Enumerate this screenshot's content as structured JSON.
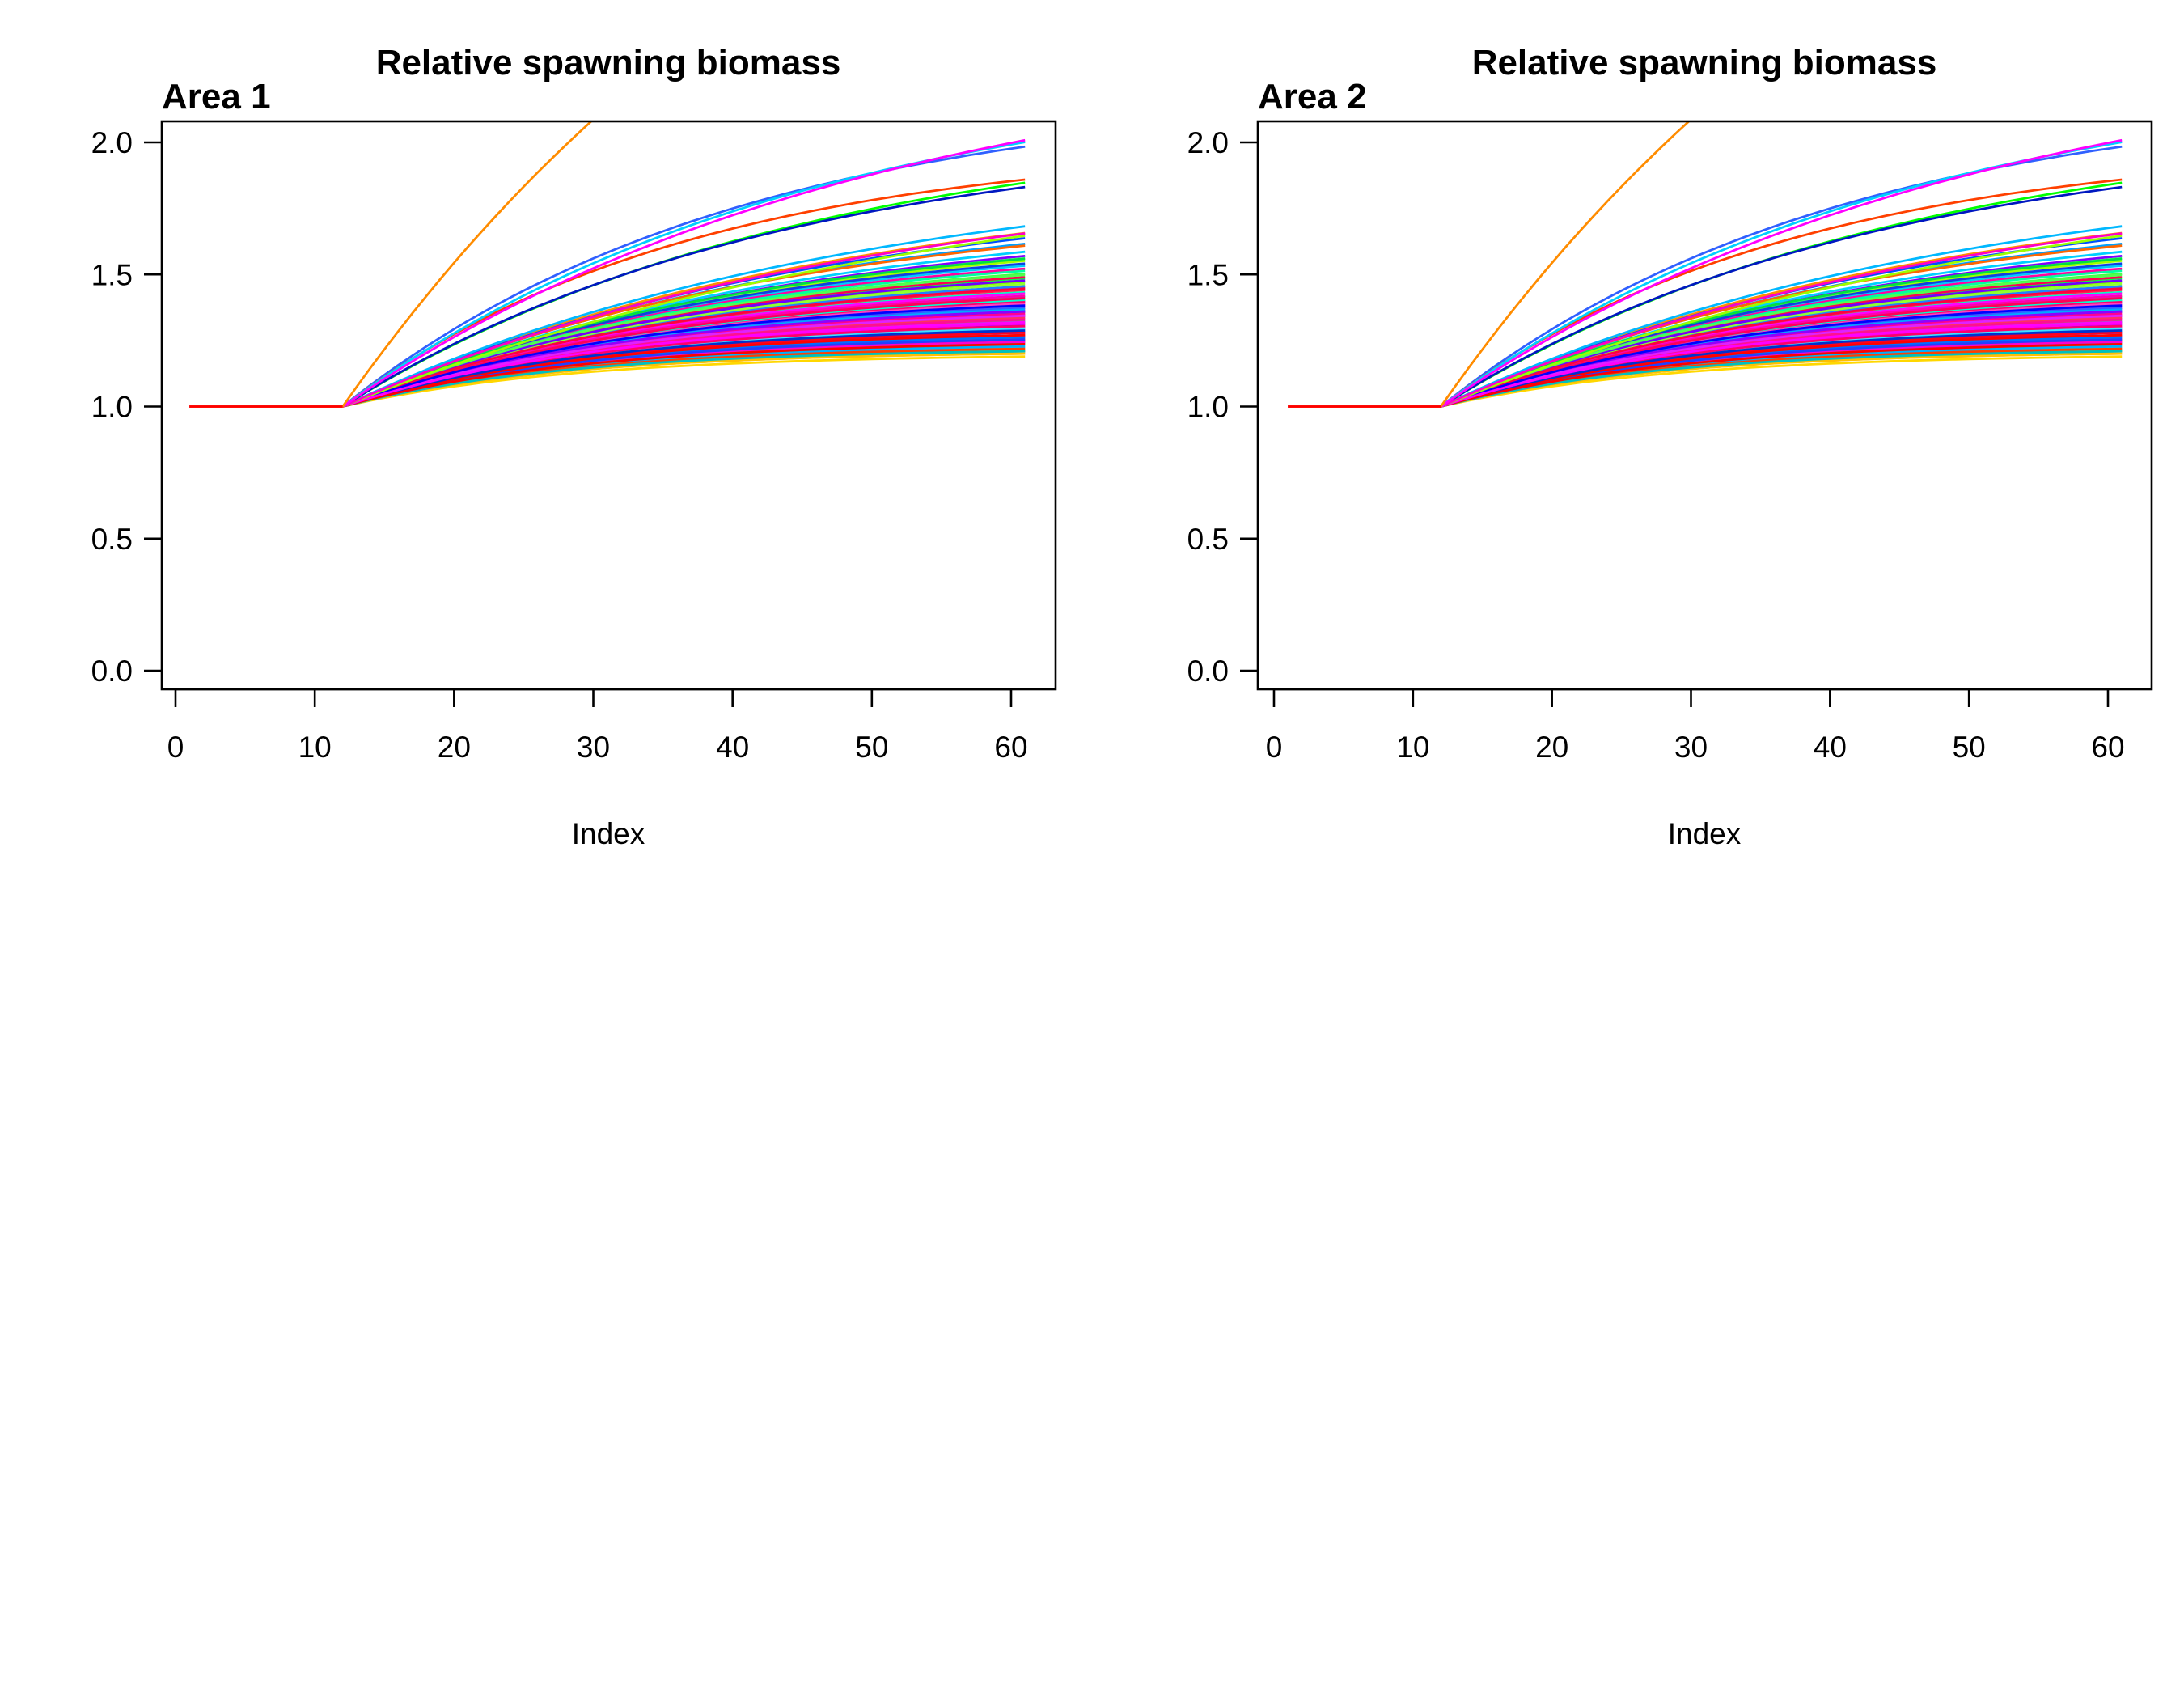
{
  "chart_data": [
    {
      "type": "line",
      "title": "Relative spawning biomass",
      "panel_label": "Area 1",
      "xlabel": "Index",
      "ylabel": "",
      "xlim": [
        0,
        61
      ],
      "ylim": [
        0,
        2.0
      ],
      "x_ticks": [
        "0",
        "10",
        "20",
        "30",
        "40",
        "50",
        "60"
      ],
      "y_ticks": [
        "0.0",
        "0.5",
        "1.0",
        "1.5",
        "2.0"
      ],
      "grid": false,
      "legend": "none",
      "series_description": "about 100 simulated trajectories; each stays at 1.0 for index 1 to 12, then rises and levels off between about 1.18 and above 2.0 by index 61",
      "baseline": {
        "x_start": 1,
        "x_end": 12,
        "value": 1.0
      },
      "series": [
        {
          "asymptote": 1.2,
          "rate": 0.06,
          "color": "#ffd700"
        },
        {
          "asymptote": 1.26,
          "rate": 0.058,
          "color": "#ff0000"
        },
        {
          "asymptote": 1.42,
          "rate": 0.045,
          "color": "#ff00aa"
        },
        {
          "asymptote": 1.65,
          "rate": 0.035,
          "color": "#00c8ff"
        },
        {
          "asymptote": 1.3,
          "rate": 0.055,
          "color": "#0040ff"
        },
        {
          "asymptote": 1.55,
          "rate": 0.04,
          "color": "#80ff00"
        },
        {
          "asymptote": 1.22,
          "rate": 0.062,
          "color": "#ff8000"
        },
        {
          "asymptote": 1.36,
          "rate": 0.05,
          "color": "#ff0060"
        },
        {
          "asymptote": 1.48,
          "rate": 0.042,
          "color": "#00ff80"
        },
        {
          "asymptote": 1.72,
          "rate": 0.032,
          "color": "#8000ff"
        },
        {
          "asymptote": 1.28,
          "rate": 0.057,
          "color": "#ff00ff"
        },
        {
          "asymptote": 1.4,
          "rate": 0.046,
          "color": "#0080ff"
        },
        {
          "asymptote": 1.52,
          "rate": 0.041,
          "color": "#ff2020"
        },
        {
          "asymptote": 1.24,
          "rate": 0.06,
          "color": "#00e0e0"
        },
        {
          "asymptote": 1.33,
          "rate": 0.052,
          "color": "#ff00c0"
        },
        {
          "asymptote": 1.6,
          "rate": 0.037,
          "color": "#40ff40"
        },
        {
          "asymptote": 1.45,
          "rate": 0.044,
          "color": "#2000c0"
        },
        {
          "asymptote": 1.21,
          "rate": 0.063,
          "color": "#ffa000"
        },
        {
          "asymptote": 1.38,
          "rate": 0.048,
          "color": "#e000ff"
        },
        {
          "asymptote": 1.8,
          "rate": 0.03,
          "color": "#00a0ff"
        },
        {
          "asymptote": 1.27,
          "rate": 0.056,
          "color": "#ff0040"
        },
        {
          "asymptote": 1.5,
          "rate": 0.041,
          "color": "#00ffc0"
        },
        {
          "asymptote": 1.34,
          "rate": 0.051,
          "color": "#4000ff"
        },
        {
          "asymptote": 1.68,
          "rate": 0.034,
          "color": "#a0ff00"
        },
        {
          "asymptote": 1.23,
          "rate": 0.061,
          "color": "#ff6000"
        },
        {
          "asymptote": 1.43,
          "rate": 0.045,
          "color": "#ff00e0"
        },
        {
          "asymptote": 1.31,
          "rate": 0.054,
          "color": "#0060ff"
        },
        {
          "asymptote": 1.57,
          "rate": 0.039,
          "color": "#00ff40"
        },
        {
          "asymptote": 1.26,
          "rate": 0.057,
          "color": "#c000ff"
        },
        {
          "asymptote": 1.39,
          "rate": 0.047,
          "color": "#ff0080"
        },
        {
          "asymptote": 1.75,
          "rate": 0.031,
          "color": "#00d0ff"
        },
        {
          "asymptote": 1.29,
          "rate": 0.055,
          "color": "#ff3030"
        },
        {
          "asymptote": 1.46,
          "rate": 0.043,
          "color": "#60ff00"
        },
        {
          "asymptote": 1.35,
          "rate": 0.05,
          "color": "#0000c0"
        },
        {
          "asymptote": 1.63,
          "rate": 0.036,
          "color": "#ff00a0"
        },
        {
          "asymptote": 1.25,
          "rate": 0.059,
          "color": "#00ffe0"
        },
        {
          "asymptote": 1.41,
          "rate": 0.046,
          "color": "#ff1060"
        },
        {
          "asymptote": 1.53,
          "rate": 0.04,
          "color": "#2080ff"
        },
        {
          "asymptote": 1.32,
          "rate": 0.053,
          "color": "#ff0030"
        },
        {
          "asymptote": 1.88,
          "rate": 0.028,
          "color": "#ff8c00"
        },
        {
          "asymptote": 1.37,
          "rate": 0.049,
          "color": "#a000ff"
        },
        {
          "asymptote": 1.22,
          "rate": 0.062,
          "color": "#00c040"
        },
        {
          "asymptote": 1.49,
          "rate": 0.042,
          "color": "#ff00ff"
        },
        {
          "asymptote": 1.28,
          "rate": 0.056,
          "color": "#0090ff"
        },
        {
          "asymptote": 1.7,
          "rate": 0.033,
          "color": "#40ff80"
        },
        {
          "asymptote": 1.44,
          "rate": 0.044,
          "color": "#ff2080"
        },
        {
          "asymptote": 1.3,
          "rate": 0.055,
          "color": "#6000ff"
        },
        {
          "asymptote": 1.58,
          "rate": 0.038,
          "color": "#ff0050"
        },
        {
          "asymptote": 1.24,
          "rate": 0.06,
          "color": "#00b0ff"
        },
        {
          "asymptote": 1.36,
          "rate": 0.05,
          "color": "#ff40ff"
        },
        {
          "asymptote": 1.47,
          "rate": 0.043,
          "color": "#20ff20"
        },
        {
          "asymptote": 1.27,
          "rate": 0.057,
          "color": "#ff1010"
        },
        {
          "asymptote": 1.4,
          "rate": 0.047,
          "color": "#0020ff"
        },
        {
          "asymptote": 1.62,
          "rate": 0.036,
          "color": "#00ffa0"
        },
        {
          "asymptote": 1.33,
          "rate": 0.052,
          "color": "#ff00c8"
        },
        {
          "asymptote": 1.42,
          "rate": 0.045,
          "color": "#3060ff"
        },
        {
          "asymptote": 1.29,
          "rate": 0.055,
          "color": "#e00060"
        },
        {
          "asymptote": 1.54,
          "rate": 0.04,
          "color": "#90ff30"
        },
        {
          "asymptote": 1.23,
          "rate": 0.061,
          "color": "#ff4000"
        },
        {
          "asymptote": 1.38,
          "rate": 0.048,
          "color": "#d000ff"
        },
        {
          "asymptote": 1.31,
          "rate": 0.054,
          "color": "#00e8ff"
        },
        {
          "asymptote": 1.45,
          "rate": 0.044,
          "color": "#ff0070"
        },
        {
          "asymptote": 1.66,
          "rate": 0.035,
          "color": "#1040e0"
        },
        {
          "asymptote": 1.26,
          "rate": 0.058,
          "color": "#ff00d0"
        },
        {
          "asymptote": 1.35,
          "rate": 0.051,
          "color": "#00ff60"
        },
        {
          "asymptote": 1.51,
          "rate": 0.041,
          "color": "#ff2050"
        },
        {
          "asymptote": 1.28,
          "rate": 0.056,
          "color": "#0070ff"
        },
        {
          "asymptote": 1.43,
          "rate": 0.045,
          "color": "#b000ff"
        },
        {
          "asymptote": 1.21,
          "rate": 0.063,
          "color": "#ffc000"
        },
        {
          "asymptote": 1.39,
          "rate": 0.047,
          "color": "#ff0090"
        },
        {
          "asymptote": 1.84,
          "rate": 0.029,
          "color": "#0050ff"
        },
        {
          "asymptote": 1.32,
          "rate": 0.053,
          "color": "#40e0ff"
        },
        {
          "asymptote": 1.48,
          "rate": 0.042,
          "color": "#ff00b0"
        },
        {
          "asymptote": 1.25,
          "rate": 0.059,
          "color": "#00d060"
        },
        {
          "asymptote": 1.37,
          "rate": 0.049,
          "color": "#ff3060"
        },
        {
          "asymptote": 1.56,
          "rate": 0.039,
          "color": "#7000ff"
        },
        {
          "asymptote": 1.3,
          "rate": 0.055,
          "color": "#ff0020"
        },
        {
          "asymptote": 1.41,
          "rate": 0.046,
          "color": "#00a8ff"
        },
        {
          "asymptote": 1.78,
          "rate": 0.031,
          "color": "#ff6600"
        },
        {
          "asymptote": 1.34,
          "rate": 0.052,
          "color": "#ff00f0"
        },
        {
          "asymptote": 1.27,
          "rate": 0.057,
          "color": "#2040ff"
        },
        {
          "asymptote": 1.46,
          "rate": 0.043,
          "color": "#00ffd0"
        },
        {
          "asymptote": 1.36,
          "rate": 0.05,
          "color": "#ff1090"
        },
        {
          "asymptote": 1.59,
          "rate": 0.038,
          "color": "#50ff50"
        },
        {
          "asymptote": 1.29,
          "rate": 0.055,
          "color": "#ff0000"
        },
        {
          "asymptote": 1.4,
          "rate": 0.047,
          "color": "#9000ff"
        },
        {
          "asymptote": 1.22,
          "rate": 0.062,
          "color": "#00c0c0"
        },
        {
          "asymptote": 1.33,
          "rate": 0.052,
          "color": "#ff0068"
        },
        {
          "asymptote": 1.69,
          "rate": 0.034,
          "color": "#00e040"
        },
        {
          "asymptote": 1.44,
          "rate": 0.044,
          "color": "#ff40c0"
        },
        {
          "asymptote": 1.31,
          "rate": 0.054,
          "color": "#0030d0"
        },
        {
          "asymptote": 1.52,
          "rate": 0.04,
          "color": "#ff0040"
        },
        {
          "asymptote": 1.93,
          "rate": 0.027,
          "color": "#00b8ff"
        },
        {
          "asymptote": 1.38,
          "rate": 0.048,
          "color": "#e020ff"
        },
        {
          "asymptote": 1.47,
          "rate": 0.042,
          "color": "#ff0058"
        },
        {
          "asymptote": 1.25,
          "rate": 0.059,
          "color": "#ff0000"
        },
        {
          "asymptote": 1.43,
          "rate": 0.045,
          "color": "#0000ff"
        },
        {
          "asymptote": 1.35,
          "rate": 0.05,
          "color": "#ff00ff"
        },
        {
          "asymptote": 2.2,
          "rate": 0.035,
          "color": "#3060ff"
        },
        {
          "asymptote": 2.1,
          "rate": 0.03,
          "color": "#00ff00"
        },
        {
          "asymptote": 2.0,
          "rate": 0.04,
          "color": "#ff4000"
        },
        {
          "asymptote": 1.98,
          "rate": 0.022,
          "color": "#9aff00"
        },
        {
          "asymptote": 2.05,
          "rate": 0.032,
          "color": "#0018c0"
        },
        {
          "asymptote": 2.3,
          "rate": 0.03,
          "color": "#00d0ff"
        },
        {
          "asymptote": 1.91,
          "rate": 0.026,
          "color": "#ff00c8"
        },
        {
          "asymptote": 2.4,
          "rate": 0.026,
          "color": "#ff00ff"
        },
        {
          "asymptote": 4.0,
          "rate": 0.025,
          "color": "#ff8c00"
        }
      ]
    },
    {
      "type": "line",
      "title": "Relative spawning biomass",
      "panel_label": "Area 2",
      "xlabel": "Index",
      "ylabel": "",
      "xlim": [
        0,
        61
      ],
      "ylim": [
        0,
        2.0
      ],
      "x_ticks": [
        "0",
        "10",
        "20",
        "30",
        "40",
        "50",
        "60"
      ],
      "y_ticks": [
        "0.0",
        "0.5",
        "1.0",
        "1.5",
        "2.0"
      ],
      "grid": false,
      "legend": "none",
      "series_description": "same trajectories as Area 1",
      "series_same_as_panel": 0
    }
  ]
}
